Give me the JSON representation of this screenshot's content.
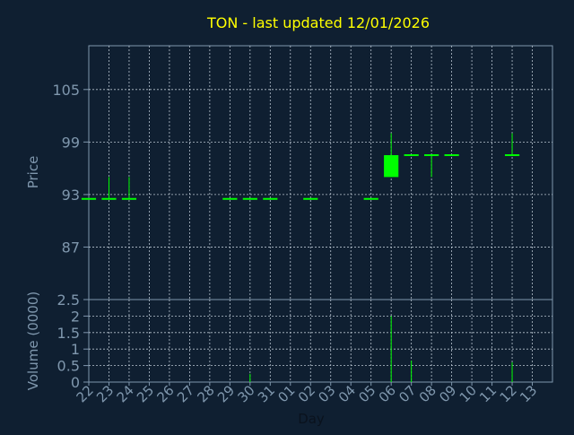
{
  "chart_data": [
    {
      "type": "candlestick",
      "title": "TON - last updated 12/01/2026",
      "ylabel": "Price",
      "xlabel": "",
      "ylim": [
        81,
        110
      ],
      "yticks": [
        87,
        93,
        99,
        105
      ],
      "grid": true,
      "categories": [
        "22",
        "23",
        "24",
        "25",
        "26",
        "27",
        "28",
        "29",
        "30",
        "31",
        "01",
        "02",
        "03",
        "04",
        "05",
        "06",
        "07",
        "08",
        "09",
        "10",
        "11",
        "12",
        "13"
      ],
      "candles": [
        {
          "day": "22",
          "open": 92.5,
          "high": 92.5,
          "low": 92.5,
          "close": 92.5
        },
        {
          "day": "23",
          "open": 92.5,
          "high": 95.0,
          "low": 92.5,
          "close": 92.5
        },
        {
          "day": "24",
          "open": 92.5,
          "high": 95.0,
          "low": 92.5,
          "close": 92.5
        },
        {
          "day": "29",
          "open": 92.5,
          "high": 92.5,
          "low": 92.5,
          "close": 92.5
        },
        {
          "day": "30",
          "open": 92.5,
          "high": 92.5,
          "low": 92.5,
          "close": 92.5
        },
        {
          "day": "31",
          "open": 92.5,
          "high": 92.5,
          "low": 92.5,
          "close": 92.5
        },
        {
          "day": "02",
          "open": 92.5,
          "high": 92.5,
          "low": 92.5,
          "close": 92.5
        },
        {
          "day": "05",
          "open": 92.5,
          "high": 92.5,
          "low": 92.5,
          "close": 92.5
        },
        {
          "day": "06",
          "open": 95.0,
          "high": 100.0,
          "low": 95.0,
          "close": 97.5
        },
        {
          "day": "07",
          "open": 97.5,
          "high": 97.5,
          "low": 97.5,
          "close": 97.5
        },
        {
          "day": "08",
          "open": 97.5,
          "high": 97.5,
          "low": 95.0,
          "close": 97.5
        },
        {
          "day": "09",
          "open": 97.5,
          "high": 97.5,
          "low": 97.5,
          "close": 97.5
        },
        {
          "day": "12",
          "open": 97.5,
          "high": 100.0,
          "low": 97.5,
          "close": 97.5
        }
      ]
    },
    {
      "type": "bar",
      "ylabel": "Volume (0000)",
      "xlabel": "Day",
      "ylim": [
        0,
        2.5
      ],
      "yticks": [
        "0",
        "0.5",
        "1",
        "1.5",
        "2",
        "2.5"
      ],
      "grid": true,
      "categories": [
        "22",
        "23",
        "24",
        "25",
        "26",
        "27",
        "28",
        "29",
        "30",
        "31",
        "01",
        "02",
        "03",
        "04",
        "05",
        "06",
        "07",
        "08",
        "09",
        "10",
        "11",
        "12",
        "13"
      ],
      "volume": [
        {
          "day": "30",
          "value": 0.25
        },
        {
          "day": "06",
          "value": 2.0
        },
        {
          "day": "07",
          "value": 0.65
        },
        {
          "day": "12",
          "value": 0.6
        }
      ]
    }
  ],
  "colors": {
    "background": "#0f1f31",
    "frame": "#7f97ad",
    "grid": "#b7c3cf",
    "title": "#ffff00",
    "label": "#7f97ad",
    "candle": "#00ff00"
  }
}
